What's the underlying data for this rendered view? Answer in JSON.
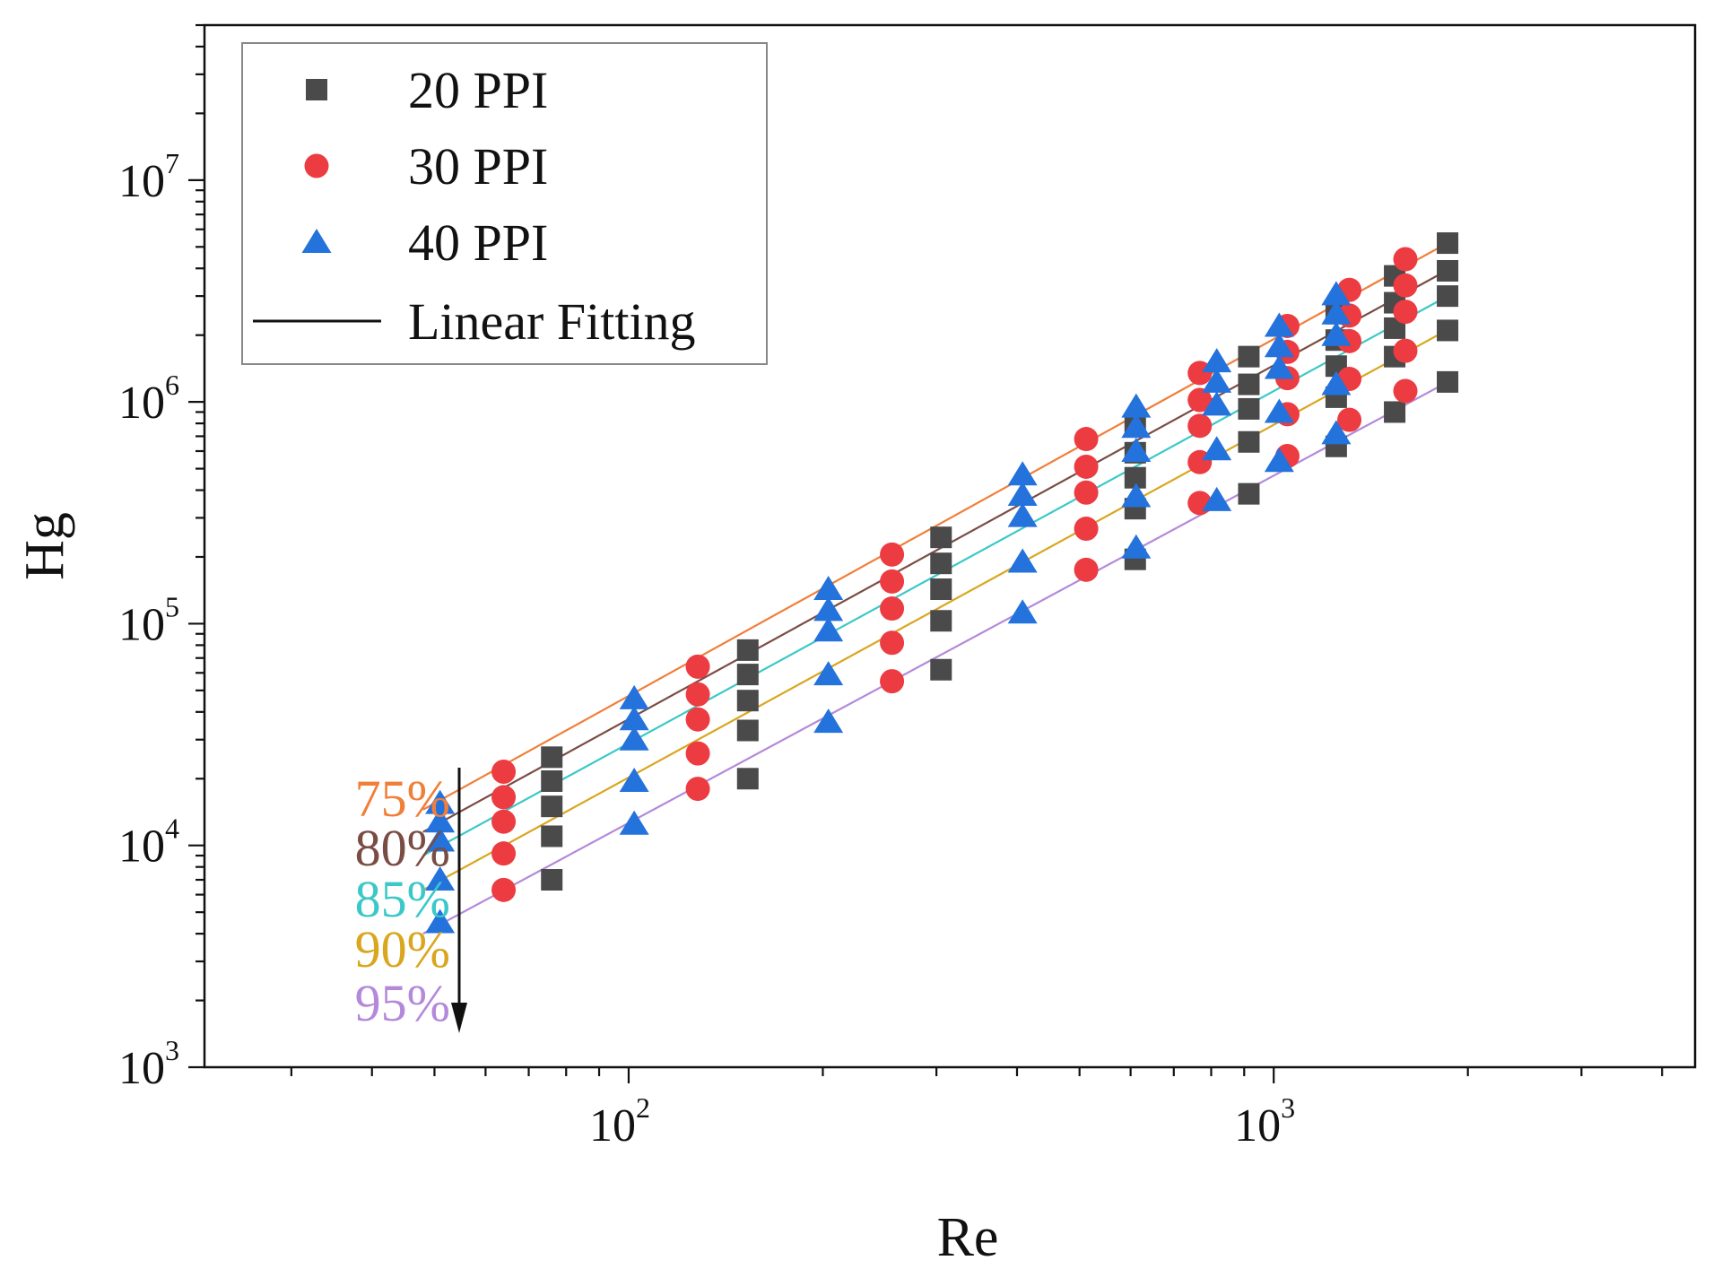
{
  "chart_data": {
    "type": "scatter",
    "title": "",
    "xlabel": "Re",
    "ylabel": "Hg",
    "xscale": "log",
    "yscale": "log",
    "xlim": [
      22,
      4500
    ],
    "ylim": [
      1000,
      50000000
    ],
    "x_ticks": [
      {
        "base": "10",
        "exp": "2",
        "value": 100
      },
      {
        "base": "10",
        "exp": "3",
        "value": 1000
      }
    ],
    "y_ticks": [
      {
        "base": "10",
        "exp": "3",
        "value": 1000
      },
      {
        "base": "10",
        "exp": "4",
        "value": 10000
      },
      {
        "base": "10",
        "exp": "5",
        "value": 100000
      },
      {
        "base": "10",
        "exp": "6",
        "value": 1000000
      },
      {
        "base": "10",
        "exp": "7",
        "value": 10000000
      }
    ],
    "legend": {
      "position": "top-left",
      "entries": [
        {
          "label": "20 PPI",
          "marker": "square",
          "color": "#4a4a4a"
        },
        {
          "label": "30 PPI",
          "marker": "circle",
          "color": "#ec3b41"
        },
        {
          "label": "40 PPI",
          "marker": "triangle",
          "color": "#2472dc"
        },
        {
          "label": "Linear Fitting",
          "marker": "line",
          "color": "#111111"
        }
      ]
    },
    "porosity_labels": [
      {
        "label": "75%",
        "color": "#f07f3a"
      },
      {
        "label": "80%",
        "color": "#7a4d44"
      },
      {
        "label": "85%",
        "color": "#3cc8c8"
      },
      {
        "label": "90%",
        "color": "#d9a61f"
      },
      {
        "label": "95%",
        "color": "#b489db"
      }
    ],
    "fit_lines": [
      {
        "porosity": "75%",
        "color": "#f07f3a",
        "x": [
          48,
          1880
        ],
        "y": [
          14500,
          5300000
        ]
      },
      {
        "porosity": "80%",
        "color": "#7a4d44",
        "x": [
          48,
          1880
        ],
        "y": [
          11500,
          4000000
        ]
      },
      {
        "porosity": "85%",
        "color": "#3cc8c8",
        "x": [
          48,
          1880
        ],
        "y": [
          9000,
          3050000
        ]
      },
      {
        "porosity": "90%",
        "color": "#d9a61f",
        "x": [
          48,
          1880
        ],
        "y": [
          6300,
          2150000
        ]
      },
      {
        "porosity": "95%",
        "color": "#b489db",
        "x": [
          48,
          1880
        ],
        "y": [
          4000,
          1250000
        ]
      }
    ],
    "series": [
      {
        "name": "20 PPI",
        "marker": "square",
        "color": "#4a4a4a",
        "points": [
          {
            "x": 76,
            "y": 25000
          },
          {
            "x": 76,
            "y": 19500
          },
          {
            "x": 76,
            "y": 15000
          },
          {
            "x": 76,
            "y": 11000
          },
          {
            "x": 76,
            "y": 7000
          },
          {
            "x": 153,
            "y": 76000
          },
          {
            "x": 153,
            "y": 59000
          },
          {
            "x": 153,
            "y": 45000
          },
          {
            "x": 153,
            "y": 33000
          },
          {
            "x": 153,
            "y": 20000
          },
          {
            "x": 305,
            "y": 245000
          },
          {
            "x": 305,
            "y": 187000
          },
          {
            "x": 305,
            "y": 143000
          },
          {
            "x": 305,
            "y": 103000
          },
          {
            "x": 305,
            "y": 62000
          },
          {
            "x": 610,
            "y": 780000
          },
          {
            "x": 610,
            "y": 590000
          },
          {
            "x": 610,
            "y": 455000
          },
          {
            "x": 610,
            "y": 330000
          },
          {
            "x": 610,
            "y": 195000
          },
          {
            "x": 915,
            "y": 1600000
          },
          {
            "x": 915,
            "y": 1200000
          },
          {
            "x": 915,
            "y": 930000
          },
          {
            "x": 915,
            "y": 660000
          },
          {
            "x": 915,
            "y": 385000
          },
          {
            "x": 1250,
            "y": 2500000
          },
          {
            "x": 1250,
            "y": 1900000
          },
          {
            "x": 1250,
            "y": 1450000
          },
          {
            "x": 1250,
            "y": 1050000
          },
          {
            "x": 1250,
            "y": 630000
          },
          {
            "x": 1540,
            "y": 3700000
          },
          {
            "x": 1540,
            "y": 2800000
          },
          {
            "x": 1540,
            "y": 2150000
          },
          {
            "x": 1540,
            "y": 1600000
          },
          {
            "x": 1540,
            "y": 900000
          },
          {
            "x": 1860,
            "y": 5200000
          },
          {
            "x": 1860,
            "y": 3900000
          },
          {
            "x": 1860,
            "y": 3000000
          },
          {
            "x": 1860,
            "y": 2100000
          },
          {
            "x": 1860,
            "y": 1230000
          }
        ]
      },
      {
        "name": "30 PPI",
        "marker": "circle",
        "color": "#ec3b41",
        "points": [
          {
            "x": 64,
            "y": 21500
          },
          {
            "x": 64,
            "y": 16500
          },
          {
            "x": 64,
            "y": 12800
          },
          {
            "x": 64,
            "y": 9200
          },
          {
            "x": 64,
            "y": 6300
          },
          {
            "x": 128,
            "y": 64000
          },
          {
            "x": 128,
            "y": 48000
          },
          {
            "x": 128,
            "y": 37000
          },
          {
            "x": 128,
            "y": 26000
          },
          {
            "x": 128,
            "y": 18000
          },
          {
            "x": 256,
            "y": 205000
          },
          {
            "x": 256,
            "y": 155000
          },
          {
            "x": 256,
            "y": 117000
          },
          {
            "x": 256,
            "y": 82000
          },
          {
            "x": 256,
            "y": 55000
          },
          {
            "x": 512,
            "y": 680000
          },
          {
            "x": 512,
            "y": 510000
          },
          {
            "x": 512,
            "y": 390000
          },
          {
            "x": 512,
            "y": 268000
          },
          {
            "x": 512,
            "y": 175000
          },
          {
            "x": 768,
            "y": 1350000
          },
          {
            "x": 768,
            "y": 1020000
          },
          {
            "x": 768,
            "y": 780000
          },
          {
            "x": 768,
            "y": 535000
          },
          {
            "x": 768,
            "y": 350000
          },
          {
            "x": 1050,
            "y": 2200000
          },
          {
            "x": 1050,
            "y": 1680000
          },
          {
            "x": 1050,
            "y": 1280000
          },
          {
            "x": 1050,
            "y": 880000
          },
          {
            "x": 1050,
            "y": 570000
          },
          {
            "x": 1310,
            "y": 3200000
          },
          {
            "x": 1310,
            "y": 2450000
          },
          {
            "x": 1310,
            "y": 1880000
          },
          {
            "x": 1310,
            "y": 1270000
          },
          {
            "x": 1310,
            "y": 830000
          },
          {
            "x": 1600,
            "y": 4400000
          },
          {
            "x": 1600,
            "y": 3350000
          },
          {
            "x": 1600,
            "y": 2550000
          },
          {
            "x": 1600,
            "y": 1700000
          },
          {
            "x": 1600,
            "y": 1120000
          }
        ]
      },
      {
        "name": "40 PPI",
        "marker": "triangle",
        "color": "#2472dc",
        "points": [
          {
            "x": 51,
            "y": 15500
          },
          {
            "x": 51,
            "y": 12800
          },
          {
            "x": 51,
            "y": 10500
          },
          {
            "x": 51,
            "y": 7000
          },
          {
            "x": 51,
            "y": 4500
          },
          {
            "x": 102,
            "y": 46000
          },
          {
            "x": 102,
            "y": 37000
          },
          {
            "x": 102,
            "y": 30000
          },
          {
            "x": 102,
            "y": 19500
          },
          {
            "x": 102,
            "y": 12500
          },
          {
            "x": 204,
            "y": 143000
          },
          {
            "x": 204,
            "y": 115000
          },
          {
            "x": 204,
            "y": 93000
          },
          {
            "x": 204,
            "y": 59000
          },
          {
            "x": 204,
            "y": 36000
          },
          {
            "x": 408,
            "y": 470000
          },
          {
            "x": 408,
            "y": 380000
          },
          {
            "x": 408,
            "y": 305000
          },
          {
            "x": 408,
            "y": 190000
          },
          {
            "x": 408,
            "y": 112000
          },
          {
            "x": 612,
            "y": 950000
          },
          {
            "x": 612,
            "y": 770000
          },
          {
            "x": 612,
            "y": 600000
          },
          {
            "x": 612,
            "y": 375000
          },
          {
            "x": 612,
            "y": 220000
          },
          {
            "x": 816,
            "y": 1520000
          },
          {
            "x": 816,
            "y": 1230000
          },
          {
            "x": 816,
            "y": 970000
          },
          {
            "x": 816,
            "y": 610000
          },
          {
            "x": 816,
            "y": 360000
          },
          {
            "x": 1020,
            "y": 2200000
          },
          {
            "x": 1020,
            "y": 1780000
          },
          {
            "x": 1020,
            "y": 1420000
          },
          {
            "x": 1020,
            "y": 900000
          },
          {
            "x": 1020,
            "y": 540000
          },
          {
            "x": 1250,
            "y": 3050000
          },
          {
            "x": 1250,
            "y": 2500000
          },
          {
            "x": 1250,
            "y": 2000000
          },
          {
            "x": 1250,
            "y": 1200000
          },
          {
            "x": 1250,
            "y": 720000
          }
        ]
      }
    ]
  }
}
